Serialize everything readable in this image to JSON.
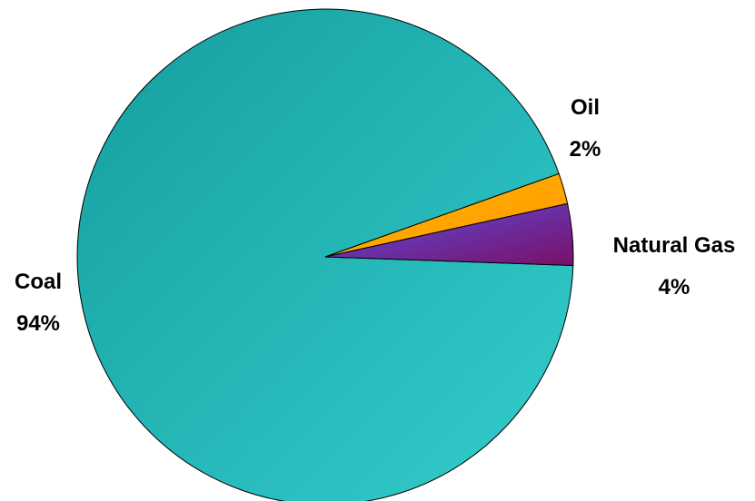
{
  "chart_data": {
    "type": "pie",
    "title": "",
    "slices": [
      {
        "label": "Coal",
        "percent_label": "94%",
        "value": 94,
        "color": "#1FB3B3"
      },
      {
        "label": "Oil",
        "percent_label": "2%",
        "value": 2,
        "color": "#FFA500"
      },
      {
        "label": "Natural Gas",
        "percent_label": "4%",
        "value": 4,
        "color": "#6A3FBF"
      }
    ],
    "legend": "none"
  }
}
